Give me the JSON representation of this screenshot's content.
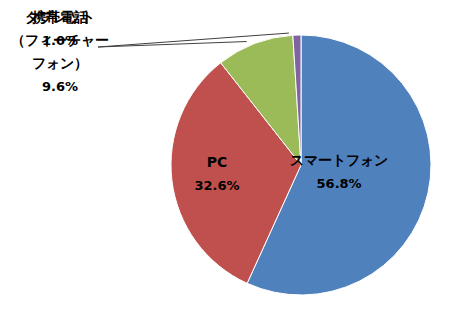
{
  "chart_data": {
    "type": "pie",
    "categories": [
      "スマートフォン",
      "PC",
      "携帯電話（フィーチャーフォン）",
      "タブレット"
    ],
    "values": [
      56.8,
      32.6,
      9.6,
      1.0
    ],
    "value_labels": [
      "56.8%",
      "32.6%",
      "9.6%",
      "1.0%"
    ],
    "colors": [
      "#4f81bd",
      "#c0504d",
      "#9bbb59",
      "#8064a2"
    ],
    "data_labels": true
  }
}
